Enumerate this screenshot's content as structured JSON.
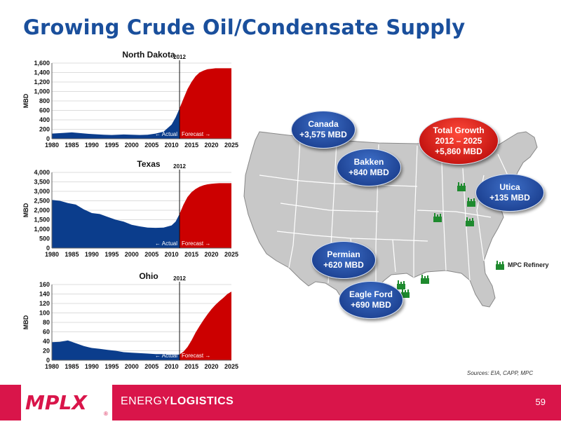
{
  "title": "Growing Crude Oil/Condensate Supply",
  "chart_data": [
    {
      "type": "area",
      "title": "North Dakota",
      "ylabel": "MBD",
      "xlim": [
        1980,
        2025
      ],
      "ylim": [
        0,
        1600
      ],
      "yticks": [
        0,
        200,
        400,
        600,
        800,
        1000,
        1200,
        1400,
        1600
      ],
      "ytick_labels": [
        "0",
        "200",
        "400",
        "600",
        "800",
        "1,000",
        "1,200",
        "1,400",
        "1,600"
      ],
      "xticks": [
        1980,
        1985,
        1990,
        1995,
        2000,
        2005,
        2010,
        2015,
        2020,
        2025
      ],
      "marker_year": 2012,
      "marker_label": "2012",
      "actual_label": "← Actual",
      "forecast_label": "Forecast →",
      "series": [
        {
          "name": "Actual",
          "color": "#0b3d8c",
          "x": [
            1980,
            1983,
            1985,
            1987,
            1990,
            1993,
            1995,
            1998,
            2000,
            2002,
            2004,
            2006,
            2008,
            2010,
            2011,
            2012
          ],
          "values": [
            110,
            125,
            135,
            120,
            100,
            85,
            80,
            90,
            85,
            80,
            85,
            110,
            150,
            300,
            450,
            640
          ]
        },
        {
          "name": "Forecast",
          "color": "#cc0000",
          "x": [
            2012,
            2013,
            2014,
            2015,
            2016,
            2017,
            2018,
            2019,
            2020,
            2021,
            2022,
            2025
          ],
          "values": [
            640,
            850,
            1050,
            1200,
            1320,
            1400,
            1440,
            1470,
            1480,
            1490,
            1490,
            1490
          ]
        }
      ]
    },
    {
      "type": "area",
      "title": "Texas",
      "ylabel": "MBD",
      "xlim": [
        1980,
        2025
      ],
      "ylim": [
        0,
        4000
      ],
      "yticks": [
        0,
        500,
        1000,
        1500,
        2000,
        2500,
        3000,
        3500,
        4000
      ],
      "ytick_labels": [
        "0",
        "500",
        "1,000",
        "1,500",
        "2,000",
        "2,500",
        "3,000",
        "3,500",
        "4,000"
      ],
      "xticks": [
        1980,
        1985,
        1990,
        1995,
        2000,
        2005,
        2010,
        2015,
        2020,
        2025
      ],
      "marker_year": 2012,
      "marker_label": "2012",
      "actual_label": "← Actual",
      "forecast_label": "Forecast →",
      "series": [
        {
          "name": "Actual",
          "color": "#0b3d8c",
          "x": [
            1980,
            1982,
            1984,
            1986,
            1988,
            1990,
            1992,
            1994,
            1996,
            1998,
            2000,
            2002,
            2004,
            2006,
            2008,
            2010,
            2011,
            2012
          ],
          "values": [
            2550,
            2500,
            2380,
            2300,
            2050,
            1850,
            1800,
            1650,
            1500,
            1400,
            1230,
            1150,
            1080,
            1070,
            1080,
            1200,
            1400,
            1800
          ]
        },
        {
          "name": "Forecast",
          "color": "#cc0000",
          "x": [
            2012,
            2013,
            2014,
            2015,
            2016,
            2017,
            2018,
            2019,
            2020,
            2021,
            2022,
            2023,
            2025
          ],
          "values": [
            1800,
            2300,
            2700,
            2950,
            3120,
            3240,
            3320,
            3370,
            3400,
            3420,
            3430,
            3430,
            3430
          ]
        }
      ]
    },
    {
      "type": "area",
      "title": "Ohio",
      "ylabel": "MBD",
      "xlim": [
        1980,
        2025
      ],
      "ylim": [
        0,
        160
      ],
      "yticks": [
        0,
        20,
        40,
        60,
        80,
        100,
        120,
        140,
        160
      ],
      "ytick_labels": [
        "0",
        "20",
        "40",
        "60",
        "80",
        "100",
        "120",
        "140",
        "160"
      ],
      "xticks": [
        1980,
        1985,
        1990,
        1995,
        2000,
        2005,
        2010,
        2015,
        2020,
        2025
      ],
      "marker_year": 2012,
      "marker_label": "2012",
      "actual_label": "← Actual",
      "forecast_label": "Forecast →",
      "series": [
        {
          "name": "Actual",
          "color": "#0b3d8c",
          "x": [
            1980,
            1982,
            1984,
            1986,
            1988,
            1990,
            1992,
            1994,
            1996,
            1998,
            2000,
            2002,
            2004,
            2006,
            2008,
            2010,
            2011,
            2012
          ],
          "values": [
            38,
            39,
            42,
            36,
            30,
            26,
            24,
            22,
            20,
            17,
            16,
            15,
            14,
            13,
            13,
            12,
            12,
            12
          ]
        },
        {
          "name": "Forecast",
          "color": "#cc0000",
          "x": [
            2012,
            2013,
            2014,
            2015,
            2016,
            2017,
            2018,
            2019,
            2020,
            2021,
            2022,
            2023,
            2024,
            2025
          ],
          "values": [
            12,
            18,
            28,
            42,
            58,
            72,
            85,
            97,
            108,
            117,
            125,
            132,
            140,
            145
          ]
        }
      ]
    }
  ],
  "map": {
    "bubbles": [
      {
        "name": "canada",
        "line1": "Canada",
        "line2": "+3,575 MBD",
        "line3": "",
        "style": "blue"
      },
      {
        "name": "bakken",
        "line1": "Bakken",
        "line2": "+840 MBD",
        "line3": "",
        "style": "blue"
      },
      {
        "name": "total-growth",
        "line1": "Total Growth",
        "line2": "2012 – 2025",
        "line3": "+5,860 MBD",
        "style": "red"
      },
      {
        "name": "utica",
        "line1": "Utica",
        "line2": "+135 MBD",
        "line3": "",
        "style": "blue"
      },
      {
        "name": "permian",
        "line1": "Permian",
        "line2": "+620 MBD",
        "line3": "",
        "style": "blue"
      },
      {
        "name": "eagle-ford",
        "line1": "Eagle Ford",
        "line2": "+690 MBD",
        "line3": "",
        "style": "blue"
      }
    ],
    "legend_label": "MPC Refinery",
    "refinery_color": "#1e8a2e",
    "map_fill": "#c8c8c8"
  },
  "sources": "Sources:  EIA, CAPP, MPC",
  "footer": {
    "brand": "MPLX",
    "tagline_light": "ENERGY",
    "tagline_bold": "LOGISTICS",
    "page_number": "59",
    "color": "#d9154a"
  }
}
